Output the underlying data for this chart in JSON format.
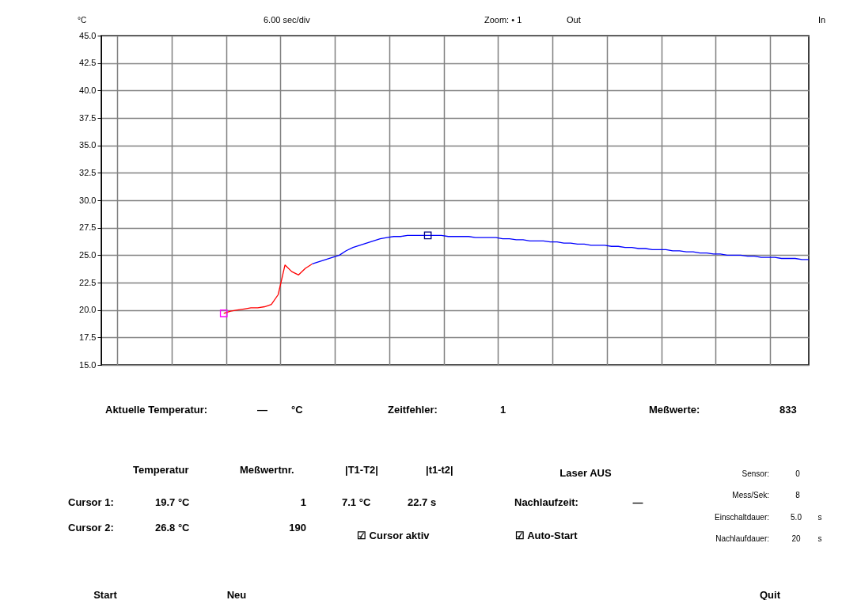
{
  "chart_data": {
    "type": "line",
    "title": "6.00  sec/div",
    "ylabel": "°C",
    "categories": [
      null,
      null,
      null,
      null,
      null,
      null,
      null,
      null,
      null,
      null,
      null,
      null,
      null,
      null,
      null,
      null,
      null,
      null,
      null,
      null,
      null,
      null,
      null,
      null,
      null,
      null,
      null,
      null,
      null,
      null,
      null,
      null,
      null,
      null,
      null,
      null,
      null,
      null,
      null,
      null,
      null,
      null,
      null,
      null,
      null,
      null,
      null,
      null,
      null,
      null,
      null,
      null,
      null,
      null,
      null,
      null,
      null,
      null,
      null,
      null,
      null,
      null,
      null,
      null,
      null,
      null,
      null,
      null,
      null,
      null,
      null,
      null,
      null,
      null,
      null,
      null,
      null,
      null,
      null,
      null,
      null,
      null,
      null,
      null,
      null,
      null,
      null,
      null,
      null,
      null,
      null,
      null,
      null,
      null,
      null,
      null,
      null,
      null,
      null,
      null,
      null,
      null,
      null,
      null,
      null
    ],
    "series": [
      {
        "color": "#ff0000",
        "values": [
          null,
          null,
          null,
          null,
          null,
          null,
          null,
          null,
          null,
          null,
          null,
          null,
          null,
          null,
          null,
          null,
          null,
          null,
          19.7,
          19.9,
          20.0,
          20.1,
          20.2,
          20.2,
          20.3,
          20.5,
          21.4,
          24.1,
          23.5,
          23.2,
          23.8,
          24.2,
          null,
          null,
          null,
          null,
          null,
          null,
          null,
          null,
          null,
          null,
          null,
          null,
          null,
          null,
          null,
          null,
          null,
          null,
          null,
          null,
          null,
          null,
          null,
          null,
          null,
          null,
          null,
          null,
          null,
          null,
          null,
          null,
          null,
          null,
          null,
          null,
          null,
          null,
          null,
          null,
          null,
          null,
          null,
          null,
          null,
          null,
          null,
          null,
          null,
          null,
          null,
          null,
          null,
          null,
          null,
          null,
          null,
          null,
          null,
          null,
          null,
          null,
          null,
          null,
          null,
          null,
          null,
          null,
          null,
          null,
          null,
          null,
          null
        ]
      },
      {
        "color": "#0000ff",
        "values": [
          null,
          null,
          null,
          null,
          null,
          null,
          null,
          null,
          null,
          null,
          null,
          null,
          null,
          null,
          null,
          null,
          null,
          null,
          null,
          null,
          null,
          null,
          null,
          null,
          null,
          null,
          null,
          null,
          null,
          null,
          null,
          24.2,
          24.4,
          24.6,
          24.8,
          25.0,
          25.4,
          25.7,
          25.9,
          26.1,
          26.3,
          26.5,
          26.6,
          26.7,
          26.7,
          26.8,
          26.8,
          26.8,
          26.8,
          26.8,
          26.8,
          26.7,
          26.7,
          26.7,
          26.7,
          26.6,
          26.6,
          26.6,
          26.6,
          26.5,
          26.5,
          26.4,
          26.4,
          26.3,
          26.3,
          26.3,
          26.2,
          26.2,
          26.1,
          26.1,
          26.0,
          26.0,
          25.9,
          25.9,
          25.9,
          25.8,
          25.8,
          25.7,
          25.7,
          25.6,
          25.6,
          25.5,
          25.5,
          25.5,
          25.4,
          25.4,
          25.3,
          25.3,
          25.2,
          25.2,
          25.1,
          25.1,
          25.0,
          25.0,
          25.0,
          24.9,
          24.9,
          24.8,
          24.8,
          24.8,
          24.7,
          24.7,
          24.7,
          24.6,
          24.6
        ]
      },
      {
        "type": "scatter",
        "marker": "square",
        "color": "#ff00ff",
        "values": [
          null,
          null,
          null,
          null,
          null,
          null,
          null,
          null,
          null,
          null,
          null,
          null,
          null,
          null,
          null,
          null,
          null,
          null,
          19.7,
          null,
          null,
          null,
          null,
          null,
          null,
          null,
          null,
          null,
          null,
          null,
          null,
          null,
          null,
          null,
          null,
          null,
          null,
          null,
          null,
          null,
          null,
          null,
          null,
          null,
          null,
          null,
          null,
          null,
          null,
          null,
          null,
          null,
          null,
          null,
          null,
          null,
          null,
          null,
          null,
          null,
          null,
          null,
          null,
          null,
          null,
          null,
          null,
          null,
          null,
          null,
          null,
          null,
          null,
          null,
          null,
          null,
          null,
          null,
          null,
          null,
          null,
          null,
          null,
          null,
          null,
          null,
          null,
          null,
          null,
          null,
          null,
          null,
          null,
          null,
          null,
          null,
          null,
          null,
          null,
          null,
          null,
          null,
          null,
          null,
          null
        ]
      },
      {
        "type": "scatter",
        "marker": "square",
        "color": "#000080",
        "values": [
          null,
          null,
          null,
          null,
          null,
          null,
          null,
          null,
          null,
          null,
          null,
          null,
          null,
          null,
          null,
          null,
          null,
          null,
          null,
          null,
          null,
          null,
          null,
          null,
          null,
          null,
          null,
          null,
          null,
          null,
          null,
          null,
          null,
          null,
          null,
          null,
          null,
          null,
          null,
          null,
          null,
          null,
          null,
          null,
          null,
          null,
          null,
          null,
          26.8,
          null,
          null,
          null,
          null,
          null,
          null,
          null,
          null,
          null,
          null,
          null,
          null,
          null,
          null,
          null,
          null,
          null,
          null,
          null,
          null,
          null,
          null,
          null,
          null,
          null,
          null,
          null,
          null,
          null,
          null,
          null,
          null,
          null,
          null,
          null,
          null,
          null,
          null,
          null,
          null,
          null,
          null,
          null,
          null,
          null,
          null,
          null,
          null,
          null,
          null,
          null,
          null,
          null,
          null,
          null,
          null
        ]
      }
    ],
    "ylim": [
      15,
      45
    ],
    "yticks": [
      {
        "value": 15,
        "label": "15.0"
      },
      {
        "value": 17.5,
        "label": "17.5"
      },
      {
        "value": 20,
        "label": "20.0"
      },
      {
        "value": 22.5,
        "label": "22.5"
      },
      {
        "value": 25,
        "label": "25.0"
      },
      {
        "value": 27.5,
        "label": "27.5"
      },
      {
        "value": 30,
        "label": "30.0"
      },
      {
        "value": 32.5,
        "label": "32.5"
      },
      {
        "value": 35,
        "label": "35.0"
      },
      {
        "value": 37.5,
        "label": "37.5"
      },
      {
        "value": 40,
        "label": "40.0"
      },
      {
        "value": 42.5,
        "label": "42.5"
      },
      {
        "value": 45,
        "label": "45.0"
      }
    ],
    "grid": true,
    "tick_labels": "y",
    "marker": "none",
    "line_style": "solid",
    "annotations": [
      "Zoom: • 1",
      "Out",
      "In",
      "Aktuelle Temperatur:",
      "—",
      "°C",
      "Zeitfehler:",
      "1",
      "Meßwerte:",
      "833",
      "Temperatur",
      "Meßwertnr.",
      "|T1-T2|",
      "|t1-t2|",
      "Cursor 1:",
      "19.7 °C",
      "1",
      "7.1 °C",
      "22.7 s",
      "Cursor 2:",
      "26.8 °C",
      "190",
      "☑ Cursor aktiv",
      "Laser AUS",
      "Nachlaufzeit:",
      "—",
      "☑ Auto-Start",
      "Sensor:",
      "0",
      "Mess/Sek:",
      "8",
      "Einschaltdauer:",
      "5.0",
      "s",
      "Nachlaufdauer:",
      "20",
      "s",
      "Start",
      "Neu",
      "Quit"
    ]
  }
}
